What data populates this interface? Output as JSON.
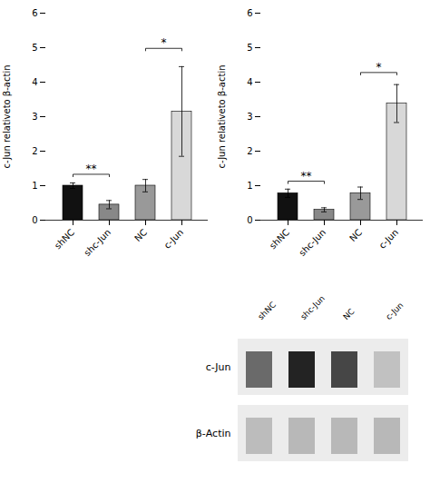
{
  "chart_data": [
    {
      "type": "bar",
      "categories": [
        "shNC",
        "shc-Jun",
        "NC",
        "c-Jun"
      ],
      "values": [
        1.0,
        0.45,
        1.0,
        3.15
      ],
      "errors": [
        0.08,
        0.12,
        0.18,
        1.3
      ],
      "colors": [
        "#111111",
        "#888888",
        "#999999",
        "#d8d8d8"
      ],
      "ylabel": "c-Jun relativeto β-actin",
      "ylim": [
        0,
        6
      ],
      "yticks": [
        0,
        1,
        2,
        3,
        4,
        5,
        6
      ],
      "annotations": [
        {
          "x1": "shNC",
          "x2": "shc-Jun",
          "y": 1.25,
          "label": "**"
        },
        {
          "x1": "NC",
          "x2": "c-Jun",
          "y": 4.9,
          "label": "*"
        }
      ]
    },
    {
      "type": "bar",
      "categories": [
        "shNC",
        "shc-Jun",
        "NC",
        "c-Jun"
      ],
      "values": [
        0.78,
        0.3,
        0.78,
        3.38
      ],
      "errors": [
        0.12,
        0.06,
        0.18,
        0.55
      ],
      "colors": [
        "#111111",
        "#888888",
        "#999999",
        "#d8d8d8"
      ],
      "ylabel": "c-Jun relativeto β-actin",
      "ylim": [
        0,
        6
      ],
      "yticks": [
        0,
        1,
        2,
        3,
        4,
        5,
        6
      ],
      "annotations": [
        {
          "x1": "shNC",
          "x2": "shc-Jun",
          "y": 1.05,
          "label": "**"
        },
        {
          "x1": "NC",
          "x2": "c-Jun",
          "y": 4.2,
          "label": "*"
        }
      ]
    },
    {
      "type": "blot",
      "categories": [
        "shNC",
        "shc-Jun",
        "NC",
        "c-Jun"
      ],
      "series": [
        {
          "name": "c-Jun",
          "values": [
            0.55,
            0.85,
            0.7,
            0.18
          ]
        },
        {
          "name": "β-Actin",
          "values": [
            0.2,
            0.22,
            0.22,
            0.22
          ]
        }
      ]
    }
  ]
}
